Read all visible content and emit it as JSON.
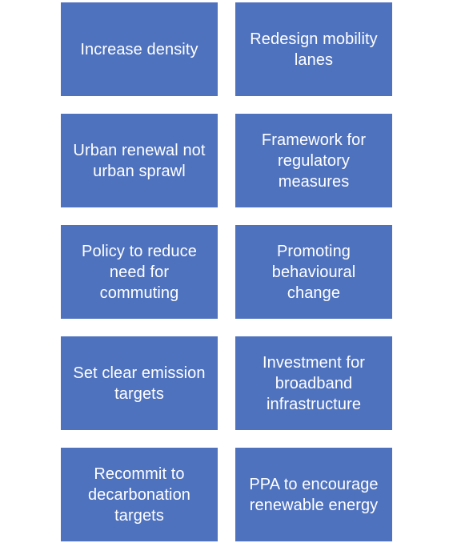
{
  "box_color": "#4f72bf",
  "text_color": "#ffffff",
  "boxes": [
    {
      "label": "Increase density"
    },
    {
      "label": "Redesign mobility lanes"
    },
    {
      "label": "Urban renewal not urban sprawl"
    },
    {
      "label": "Framework for regulatory measures"
    },
    {
      "label": "Policy to reduce need for commuting"
    },
    {
      "label": "Promoting behavioural change"
    },
    {
      "label": "Set clear emission targets"
    },
    {
      "label": "Investment for broadband infrastructure"
    },
    {
      "label": "Recommit to decarbonation targets"
    },
    {
      "label": "PPA to encourage renewable energy"
    }
  ]
}
